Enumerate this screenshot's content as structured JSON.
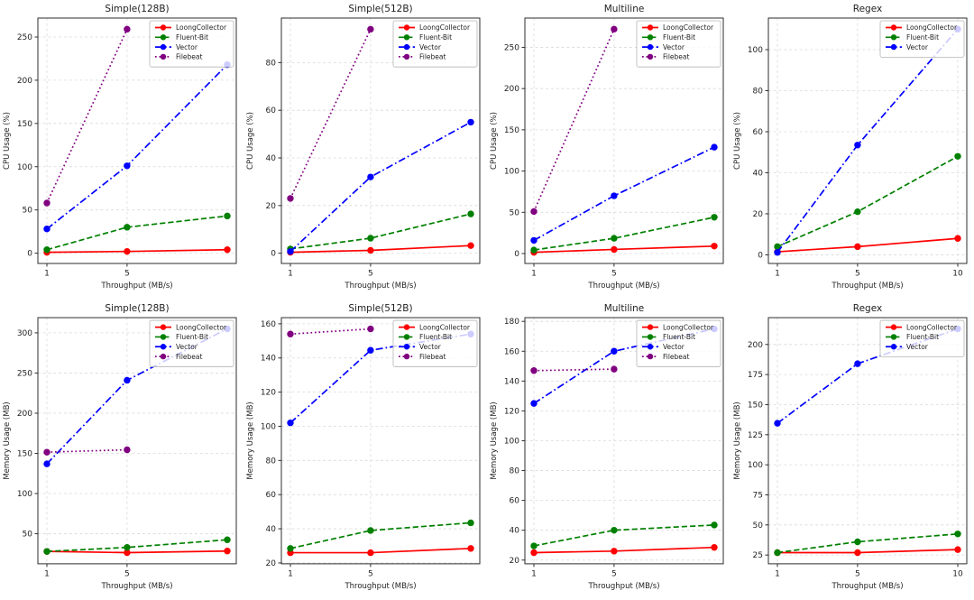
{
  "figure": {
    "background": "#ffffff",
    "grid_color": "#d8d8d8",
    "axis_color": "#2e2e2e",
    "text_color": "#1f1f1f",
    "legend_border": "#b5b5b5",
    "legend_background": "#ffffff"
  },
  "series_styles": [
    {
      "name": "LoongCollector",
      "color": "#ff0000",
      "dash": "solid",
      "marker": "circle"
    },
    {
      "name": "Fluent-Bit",
      "color": "#008000",
      "dash": "dashed",
      "marker": "circle"
    },
    {
      "name": "Vector",
      "color": "#0000ff",
      "dash": "dashdot",
      "marker": "circle"
    },
    {
      "name": "Filebeat",
      "color": "#800080",
      "dash": "dotted",
      "marker": "circle"
    }
  ],
  "chart_data": [
    {
      "type": "line",
      "title": "Simple(128B)",
      "xlabel": "Throughput (MB/s)",
      "ylabel": "CPU Usage (%)",
      "xlim": [
        0.55,
        10.45
      ],
      "ylim": [
        -11.9,
        271.9
      ],
      "x_ticks": [
        1,
        5
      ],
      "y_ticks": [
        0,
        50,
        100,
        150,
        200,
        250
      ],
      "grid": true,
      "legend_position": "upper-right",
      "legend": [
        "LoongCollector",
        "Fluent-Bit",
        "Vector",
        "Filebeat"
      ],
      "series": [
        {
          "name": "LoongCollector",
          "x": [
            1,
            5,
            10
          ],
          "y": [
            1,
            2,
            4
          ]
        },
        {
          "name": "Fluent-Bit",
          "x": [
            1,
            5,
            10
          ],
          "y": [
            4,
            30,
            43
          ]
        },
        {
          "name": "Vector",
          "x": [
            1,
            5,
            10
          ],
          "y": [
            28,
            101,
            218
          ]
        },
        {
          "name": "Filebeat",
          "x": [
            1,
            5
          ],
          "y": [
            58,
            259
          ]
        }
      ]
    },
    {
      "type": "line",
      "title": "Simple(512B)",
      "xlabel": "Throughput (MB/s)",
      "ylabel": "CPU Usage (%)",
      "xlim": [
        0.55,
        10.45
      ],
      "ylim": [
        -4.3,
        98.7
      ],
      "x_ticks": [
        1,
        5
      ],
      "y_ticks": [
        0,
        20,
        40,
        60,
        80
      ],
      "grid": true,
      "legend_position": "upper-right",
      "legend": [
        "LoongCollector",
        "Fluent-Bit",
        "Vector",
        "Filebeat"
      ],
      "series": [
        {
          "name": "LoongCollector",
          "x": [
            1,
            5,
            10
          ],
          "y": [
            0.4,
            1.2,
            3.2
          ]
        },
        {
          "name": "Fluent-Bit",
          "x": [
            1,
            5,
            10
          ],
          "y": [
            1.8,
            6.3,
            16.5
          ]
        },
        {
          "name": "Vector",
          "x": [
            1,
            5,
            10
          ],
          "y": [
            0.7,
            32,
            55
          ]
        },
        {
          "name": "Filebeat",
          "x": [
            1,
            5
          ],
          "y": [
            23,
            94
          ]
        }
      ]
    },
    {
      "type": "line",
      "title": "Multiline",
      "xlabel": "Throughput (MB/s)",
      "ylabel": "CPU Usage (%)",
      "xlim": [
        0.55,
        10.45
      ],
      "ylim": [
        -12.0,
        285.5
      ],
      "x_ticks": [
        1,
        5
      ],
      "y_ticks": [
        0,
        50,
        100,
        150,
        200,
        250
      ],
      "grid": true,
      "legend_position": "upper-right",
      "legend": [
        "LoongCollector",
        "Fluent-Bit",
        "Vector",
        "Filebeat"
      ],
      "series": [
        {
          "name": "LoongCollector",
          "x": [
            1,
            5,
            10
          ],
          "y": [
            1.5,
            5,
            9
          ]
        },
        {
          "name": "Fluent-Bit",
          "x": [
            1,
            5,
            10
          ],
          "y": [
            4.3,
            18.5,
            44
          ]
        },
        {
          "name": "Vector",
          "x": [
            1,
            5,
            10
          ],
          "y": [
            16,
            70,
            129
          ]
        },
        {
          "name": "Filebeat",
          "x": [
            1,
            5
          ],
          "y": [
            51,
            272
          ]
        }
      ]
    },
    {
      "type": "line",
      "title": "Regex",
      "xlabel": "Throughput (MB/s)",
      "ylabel": "CPU Usage (%)",
      "xlim": [
        0.55,
        10.45
      ],
      "ylim": [
        -4.2,
        115.4
      ],
      "x_ticks": [
        1,
        5,
        10
      ],
      "y_ticks": [
        0,
        20,
        40,
        60,
        80,
        100
      ],
      "grid": true,
      "legend_position": "upper-right",
      "legend": [
        "LoongCollector",
        "Fluent-Bit",
        "Vector"
      ],
      "series": [
        {
          "name": "LoongCollector",
          "x": [
            1,
            5,
            10
          ],
          "y": [
            1.5,
            4,
            8
          ]
        },
        {
          "name": "Fluent-Bit",
          "x": [
            1,
            5,
            10
          ],
          "y": [
            4,
            21,
            48
          ]
        },
        {
          "name": "Vector",
          "x": [
            1,
            5,
            10
          ],
          "y": [
            1.2,
            53.5,
            110
          ]
        }
      ]
    },
    {
      "type": "line",
      "title": "Simple(128B)",
      "xlabel": "Throughput (MB/s)",
      "ylabel": "Memory Usage (MB)",
      "xlim": [
        0.55,
        10.45
      ],
      "ylim": [
        12.6,
        318.9
      ],
      "x_ticks": [
        1,
        5
      ],
      "y_ticks": [
        50,
        100,
        150,
        200,
        250,
        300
      ],
      "grid": true,
      "legend_position": "upper-right",
      "legend": [
        "LoongCollector",
        "Fluent-Bit",
        "Vector",
        "Filebeat"
      ],
      "series": [
        {
          "name": "LoongCollector",
          "x": [
            1,
            5,
            10
          ],
          "y": [
            28,
            26.5,
            28.5
          ]
        },
        {
          "name": "Fluent-Bit",
          "x": [
            1,
            5,
            10
          ],
          "y": [
            28,
            33,
            42.5
          ]
        },
        {
          "name": "Vector",
          "x": [
            1,
            5,
            10
          ],
          "y": [
            137,
            241,
            305
          ]
        },
        {
          "name": "Filebeat",
          "x": [
            1,
            5
          ],
          "y": [
            151.5,
            154.5
          ]
        }
      ]
    },
    {
      "type": "line",
      "title": "Simple(512B)",
      "xlabel": "Throughput (MB/s)",
      "ylabel": "Memory Usage (MB)",
      "xlim": [
        0.55,
        10.45
      ],
      "ylim": [
        19.5,
        163.6
      ],
      "x_ticks": [
        1,
        5
      ],
      "y_ticks": [
        20,
        40,
        60,
        80,
        100,
        120,
        140,
        160
      ],
      "grid": true,
      "legend_position": "upper-right",
      "legend": [
        "LoongCollector",
        "Fluent-Bit",
        "Vector",
        "Filebeat"
      ],
      "series": [
        {
          "name": "LoongCollector",
          "x": [
            1,
            5,
            10
          ],
          "y": [
            26,
            26,
            28.5
          ]
        },
        {
          "name": "Fluent-Bit",
          "x": [
            1,
            5,
            10
          ],
          "y": [
            28.5,
            39,
            43.5
          ]
        },
        {
          "name": "Vector",
          "x": [
            1,
            5,
            10
          ],
          "y": [
            102,
            144.5,
            154
          ]
        },
        {
          "name": "Filebeat",
          "x": [
            1,
            5
          ],
          "y": [
            154,
            157
          ]
        }
      ]
    },
    {
      "type": "line",
      "title": "Multiline",
      "xlabel": "Throughput (MB/s)",
      "ylabel": "Memory Usage (MB)",
      "xlim": [
        0.55,
        10.45
      ],
      "ylim": [
        17.5,
        182.5
      ],
      "x_ticks": [
        1,
        5
      ],
      "y_ticks": [
        20,
        40,
        60,
        80,
        100,
        120,
        140,
        160,
        180
      ],
      "grid": true,
      "legend_position": "upper-right",
      "legend": [
        "LoongCollector",
        "Fluent-Bit",
        "Vector",
        "Filebeat"
      ],
      "series": [
        {
          "name": "LoongCollector",
          "x": [
            1,
            5,
            10
          ],
          "y": [
            25,
            26,
            28.5
          ]
        },
        {
          "name": "Fluent-Bit",
          "x": [
            1,
            5,
            10
          ],
          "y": [
            29.5,
            40,
            43.5
          ]
        },
        {
          "name": "Vector",
          "x": [
            1,
            5,
            10
          ],
          "y": [
            125,
            160,
            175
          ]
        },
        {
          "name": "Filebeat",
          "x": [
            1,
            5
          ],
          "y": [
            147,
            148
          ]
        }
      ]
    },
    {
      "type": "line",
      "title": "Regex",
      "xlabel": "Throughput (MB/s)",
      "ylabel": "Memory Usage (MB)",
      "xlim": [
        0.55,
        10.45
      ],
      "ylim": [
        17.7,
        222.3
      ],
      "x_ticks": [
        1,
        5,
        10
      ],
      "y_ticks": [
        25,
        50,
        75,
        100,
        125,
        150,
        175,
        200
      ],
      "grid": true,
      "legend_position": "upper-right",
      "legend": [
        "LoongCollector",
        "Fluent-Bit",
        "Vector"
      ],
      "series": [
        {
          "name": "LoongCollector",
          "x": [
            1,
            5,
            10
          ],
          "y": [
            27,
            27,
            29.5
          ]
        },
        {
          "name": "Fluent-Bit",
          "x": [
            1,
            5,
            10
          ],
          "y": [
            27,
            36,
            42.5
          ]
        },
        {
          "name": "Vector",
          "x": [
            1,
            5,
            10
          ],
          "y": [
            134.5,
            184,
            213
          ]
        }
      ]
    }
  ]
}
